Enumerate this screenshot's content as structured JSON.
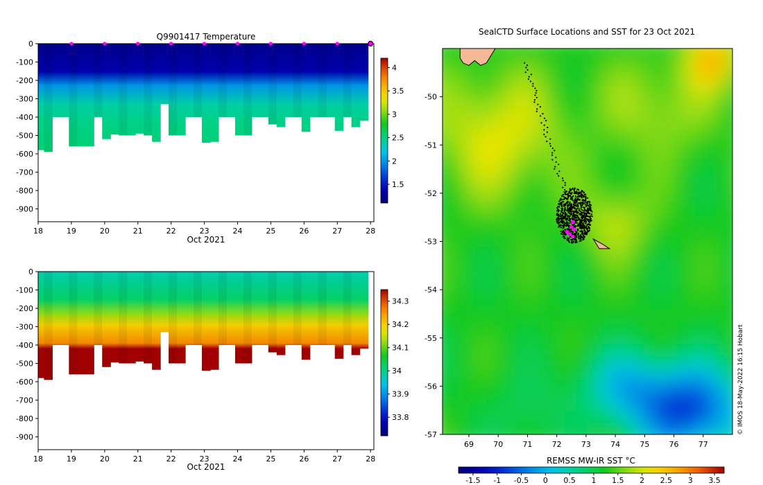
{
  "chart_data": [
    {
      "type": "heatmap",
      "panel": "temperature-section",
      "title": "Q9901417  Temperature",
      "xlabel": "Oct 2021",
      "ylabel": "",
      "xlim": [
        18,
        28.1
      ],
      "ylim": [
        -970,
        0
      ],
      "x_ticks": [
        18,
        19,
        20,
        21,
        22,
        23,
        24,
        25,
        26,
        27,
        28
      ],
      "y_ticks": [
        0,
        -100,
        -200,
        -300,
        -400,
        -500,
        -600,
        -700,
        -800,
        -900
      ],
      "profile_days": [
        18.05,
        18.3,
        18.55,
        18.8,
        19.05,
        19.3,
        19.55,
        19.8,
        20.05,
        20.3,
        20.55,
        20.8,
        21.05,
        21.3,
        21.55,
        21.8,
        22.05,
        22.3,
        22.55,
        22.8,
        23.05,
        23.3,
        23.55,
        23.8,
        24.05,
        24.3,
        24.55,
        24.8,
        25.05,
        25.3,
        25.55,
        25.8,
        26.05,
        26.3,
        26.55,
        26.8,
        27.05,
        27.3,
        27.55,
        27.8
      ],
      "profile_max_depth": [
        580,
        590,
        400,
        400,
        560,
        560,
        560,
        400,
        520,
        495,
        500,
        500,
        490,
        500,
        535,
        330,
        500,
        500,
        400,
        400,
        540,
        535,
        400,
        400,
        500,
        500,
        400,
        400,
        440,
        455,
        400,
        400,
        480,
        400,
        400,
        400,
        475,
        400,
        455,
        420
      ],
      "profile_markers_days": [
        19,
        20,
        21,
        22,
        23,
        24,
        25,
        26,
        27,
        28
      ],
      "colorbar": {
        "min": 1.1,
        "max": 4.2,
        "ticks": [
          1.5,
          2,
          2.5,
          3,
          3.5,
          4
        ],
        "tick_labels": [
          "1.5",
          "2",
          "2.5",
          "3",
          "3.5",
          "4"
        ]
      },
      "profile_stops": [
        {
          "depth": 0,
          "value": 1.2
        },
        {
          "depth": 150,
          "value": 1.35
        },
        {
          "depth": 230,
          "value": 2.0
        },
        {
          "depth": 330,
          "value": 2.4
        },
        {
          "depth": 420,
          "value": 2.48
        },
        {
          "depth": 600,
          "value": 2.55
        }
      ]
    },
    {
      "type": "heatmap",
      "panel": "salinity-section",
      "title": "",
      "xlabel": "Oct 2021",
      "ylabel": "",
      "xlim": [
        18,
        28.1
      ],
      "ylim": [
        -970,
        0
      ],
      "x_ticks": [
        18,
        19,
        20,
        21,
        22,
        23,
        24,
        25,
        26,
        27,
        28
      ],
      "y_ticks": [
        0,
        -100,
        -200,
        -300,
        -400,
        -500,
        -600,
        -700,
        -800,
        -900
      ],
      "colorbar": {
        "min": 33.72,
        "max": 34.35,
        "ticks": [
          33.8,
          33.9,
          34,
          34.1,
          34.2,
          34.3
        ],
        "tick_labels": [
          "33.8",
          "33.9",
          "34",
          "34.1",
          "34.2",
          "34.3"
        ]
      },
      "profile_stops": [
        {
          "depth": 0,
          "value": 33.98
        },
        {
          "depth": 150,
          "value": 34.02
        },
        {
          "depth": 230,
          "value": 34.12
        },
        {
          "depth": 290,
          "value": 34.2
        },
        {
          "depth": 390,
          "value": 34.26
        },
        {
          "depth": 420,
          "value": 34.36
        },
        {
          "depth": 600,
          "value": 34.38
        }
      ]
    },
    {
      "type": "heatmap",
      "panel": "sst-map",
      "title": "SealCTD Surface Locations and SST for 23 Oct 2021",
      "xlabel": "",
      "ylabel": "",
      "xlim": [
        68.1,
        78.0
      ],
      "ylim": [
        -57.0,
        -49.0
      ],
      "x_ticks": [
        69,
        70,
        71,
        72,
        73,
        74,
        75,
        76,
        77
      ],
      "y_ticks": [
        -50,
        -51,
        -52,
        -53,
        -54,
        -55,
        -56,
        -57
      ],
      "colorbar": {
        "label": "REMSS MW-IR SST °C",
        "min": -1.8,
        "max": 3.7,
        "ticks": [
          -1.5,
          -1,
          -0.5,
          0,
          0.5,
          1,
          1.5,
          2,
          2.5,
          3,
          3.5
        ],
        "tick_labels": [
          "-1.5",
          "-1",
          "-0.5",
          "0",
          "0.5",
          "1",
          "1.5",
          "2",
          "2.5",
          "3",
          "3.5"
        ]
      },
      "islands": [
        {
          "name": "Kerguelen",
          "points": [
            [
              68.7,
              -49.0
            ],
            [
              69.9,
              -49.0
            ],
            [
              69.7,
              -49.2
            ],
            [
              69.6,
              -49.3
            ],
            [
              69.4,
              -49.35
            ],
            [
              69.2,
              -49.25
            ],
            [
              69.0,
              -49.35
            ],
            [
              68.8,
              -49.3
            ],
            [
              68.7,
              -49.2
            ]
          ]
        },
        {
          "name": "Heard Island",
          "points": [
            [
              73.25,
              -52.95
            ],
            [
              73.55,
              -53.05
            ],
            [
              73.8,
              -53.15
            ],
            [
              73.45,
              -53.15
            ],
            [
              73.35,
              -53.05
            ]
          ]
        }
      ],
      "seal_track_cluster": {
        "lon": 72.6,
        "lat": -52.55
      },
      "seal_positions_highlight": [
        [
          72.55,
          -52.6
        ],
        [
          72.5,
          -52.7
        ],
        [
          72.6,
          -52.75
        ],
        [
          72.45,
          -52.85
        ],
        [
          72.55,
          -52.9
        ],
        [
          72.35,
          -52.8
        ]
      ]
    }
  ],
  "footer": "© IMOS 18-May-2022 16:15 Hobart"
}
